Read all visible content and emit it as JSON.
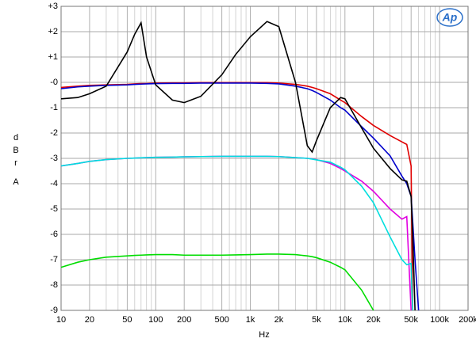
{
  "chart_data": {
    "type": "line",
    "logo": "Ap",
    "x_label": "Hz",
    "y_label": "dBr",
    "y_label_unit": "A",
    "log_x": true,
    "grid": true,
    "x": [
      10,
      15,
      20,
      30,
      50,
      60,
      70,
      80,
      100,
      150,
      200,
      300,
      500,
      700,
      1000,
      1500,
      2000,
      3000,
      4000,
      4500,
      5000,
      7000,
      9000,
      10000,
      15000,
      20000,
      30000,
      40000,
      45000,
      50000,
      52000,
      55000,
      60000
    ],
    "series": [
      {
        "color": "#e00000",
        "values": [
          -0.2,
          -0.15,
          -0.12,
          -0.1,
          -0.08,
          -0.06,
          -0.05,
          -0.05,
          -0.03,
          -0.02,
          -0.02,
          -0.01,
          -0.01,
          -0.01,
          -0.01,
          -0.01,
          -0.03,
          -0.08,
          -0.15,
          -0.2,
          -0.25,
          -0.45,
          -0.7,
          -0.8,
          -1.35,
          -1.7,
          -2.1,
          -2.35,
          -2.45,
          -3.3,
          -9,
          null,
          null
        ]
      },
      {
        "color": "#0000cc",
        "values": [
          -0.25,
          -0.18,
          -0.15,
          -0.12,
          -0.1,
          -0.08,
          -0.07,
          -0.06,
          -0.05,
          -0.04,
          -0.04,
          -0.03,
          -0.03,
          -0.03,
          -0.03,
          -0.04,
          -0.06,
          -0.15,
          -0.25,
          -0.32,
          -0.4,
          -0.7,
          -1.0,
          -1.1,
          -1.75,
          -2.2,
          -2.9,
          -3.7,
          -4.0,
          -4.5,
          -5.5,
          -7,
          -9
        ]
      },
      {
        "color": "#000000",
        "values": [
          -0.65,
          -0.6,
          -0.45,
          -0.15,
          1.2,
          1.9,
          2.35,
          1.0,
          -0.1,
          -0.7,
          -0.8,
          -0.55,
          0.3,
          1.1,
          1.8,
          2.4,
          2.2,
          0,
          -2.5,
          -2.75,
          -2.3,
          -1.0,
          -0.6,
          -0.65,
          -1.8,
          -2.6,
          -3.4,
          -3.85,
          -3.9,
          -4.5,
          -6,
          -9,
          null
        ]
      },
      {
        "color": "#e000e0",
        "values": [
          -3.3,
          -3.2,
          -3.12,
          -3.05,
          -3.0,
          -2.99,
          -2.98,
          -2.97,
          -2.96,
          -2.95,
          -2.94,
          -2.93,
          -2.92,
          -2.92,
          -2.92,
          -2.92,
          -2.93,
          -2.97,
          -3.0,
          -3.02,
          -3.05,
          -3.2,
          -3.4,
          -3.5,
          -3.9,
          -4.3,
          -5.0,
          -5.4,
          -5.3,
          -9,
          null,
          null,
          null
        ]
      },
      {
        "color": "#00dede",
        "values": [
          -3.3,
          -3.2,
          -3.12,
          -3.05,
          -3.0,
          -2.99,
          -2.98,
          -2.97,
          -2.96,
          -2.95,
          -2.94,
          -2.93,
          -2.92,
          -2.92,
          -2.92,
          -2.92,
          -2.93,
          -2.97,
          -3.0,
          -3.03,
          -3.06,
          -3.15,
          -3.35,
          -3.45,
          -4.1,
          -4.75,
          -6.1,
          -7.0,
          -7.2,
          -7.15,
          -9,
          null,
          null
        ]
      },
      {
        "color": "#00dd00",
        "values": [
          -7.3,
          -7.1,
          -7.0,
          -6.9,
          -6.85,
          -6.83,
          -6.82,
          -6.81,
          -6.8,
          -6.8,
          -6.82,
          -6.82,
          -6.82,
          -6.81,
          -6.8,
          -6.78,
          -6.78,
          -6.8,
          -6.85,
          -6.88,
          -6.92,
          -7.1,
          -7.3,
          -7.4,
          -8.2,
          -9,
          null,
          null,
          null,
          null,
          null,
          null,
          null
        ]
      }
    ],
    "xlim": [
      10,
      200000
    ],
    "ylim": [
      -9,
      3
    ],
    "xticks": [
      10,
      20,
      50,
      100,
      200,
      500,
      {
        "value": 1000,
        "label": "1k"
      },
      {
        "value": 2000,
        "label": "2k"
      },
      {
        "value": 5000,
        "label": "5k"
      },
      {
        "value": 10000,
        "label": "10k"
      },
      {
        "value": 20000,
        "label": "20k"
      },
      {
        "value": 50000,
        "label": "50k"
      },
      {
        "value": 100000,
        "label": "100k"
      },
      {
        "value": 200000,
        "label": "200k"
      }
    ],
    "xminorticks": [
      30,
      40,
      60,
      70,
      80,
      90,
      300,
      400,
      600,
      700,
      800,
      900,
      3000,
      4000,
      6000,
      7000,
      8000,
      9000,
      30000,
      40000,
      60000,
      70000,
      80000,
      90000
    ],
    "yticks": [
      {
        "value": 3,
        "label": "+3"
      },
      {
        "value": 2,
        "label": "+2"
      },
      {
        "value": 1,
        "label": "+1"
      },
      {
        "value": 0,
        "label": "-0"
      },
      -1,
      -2,
      -3,
      -4,
      -5,
      -6,
      -7,
      -8,
      -9
    ]
  }
}
